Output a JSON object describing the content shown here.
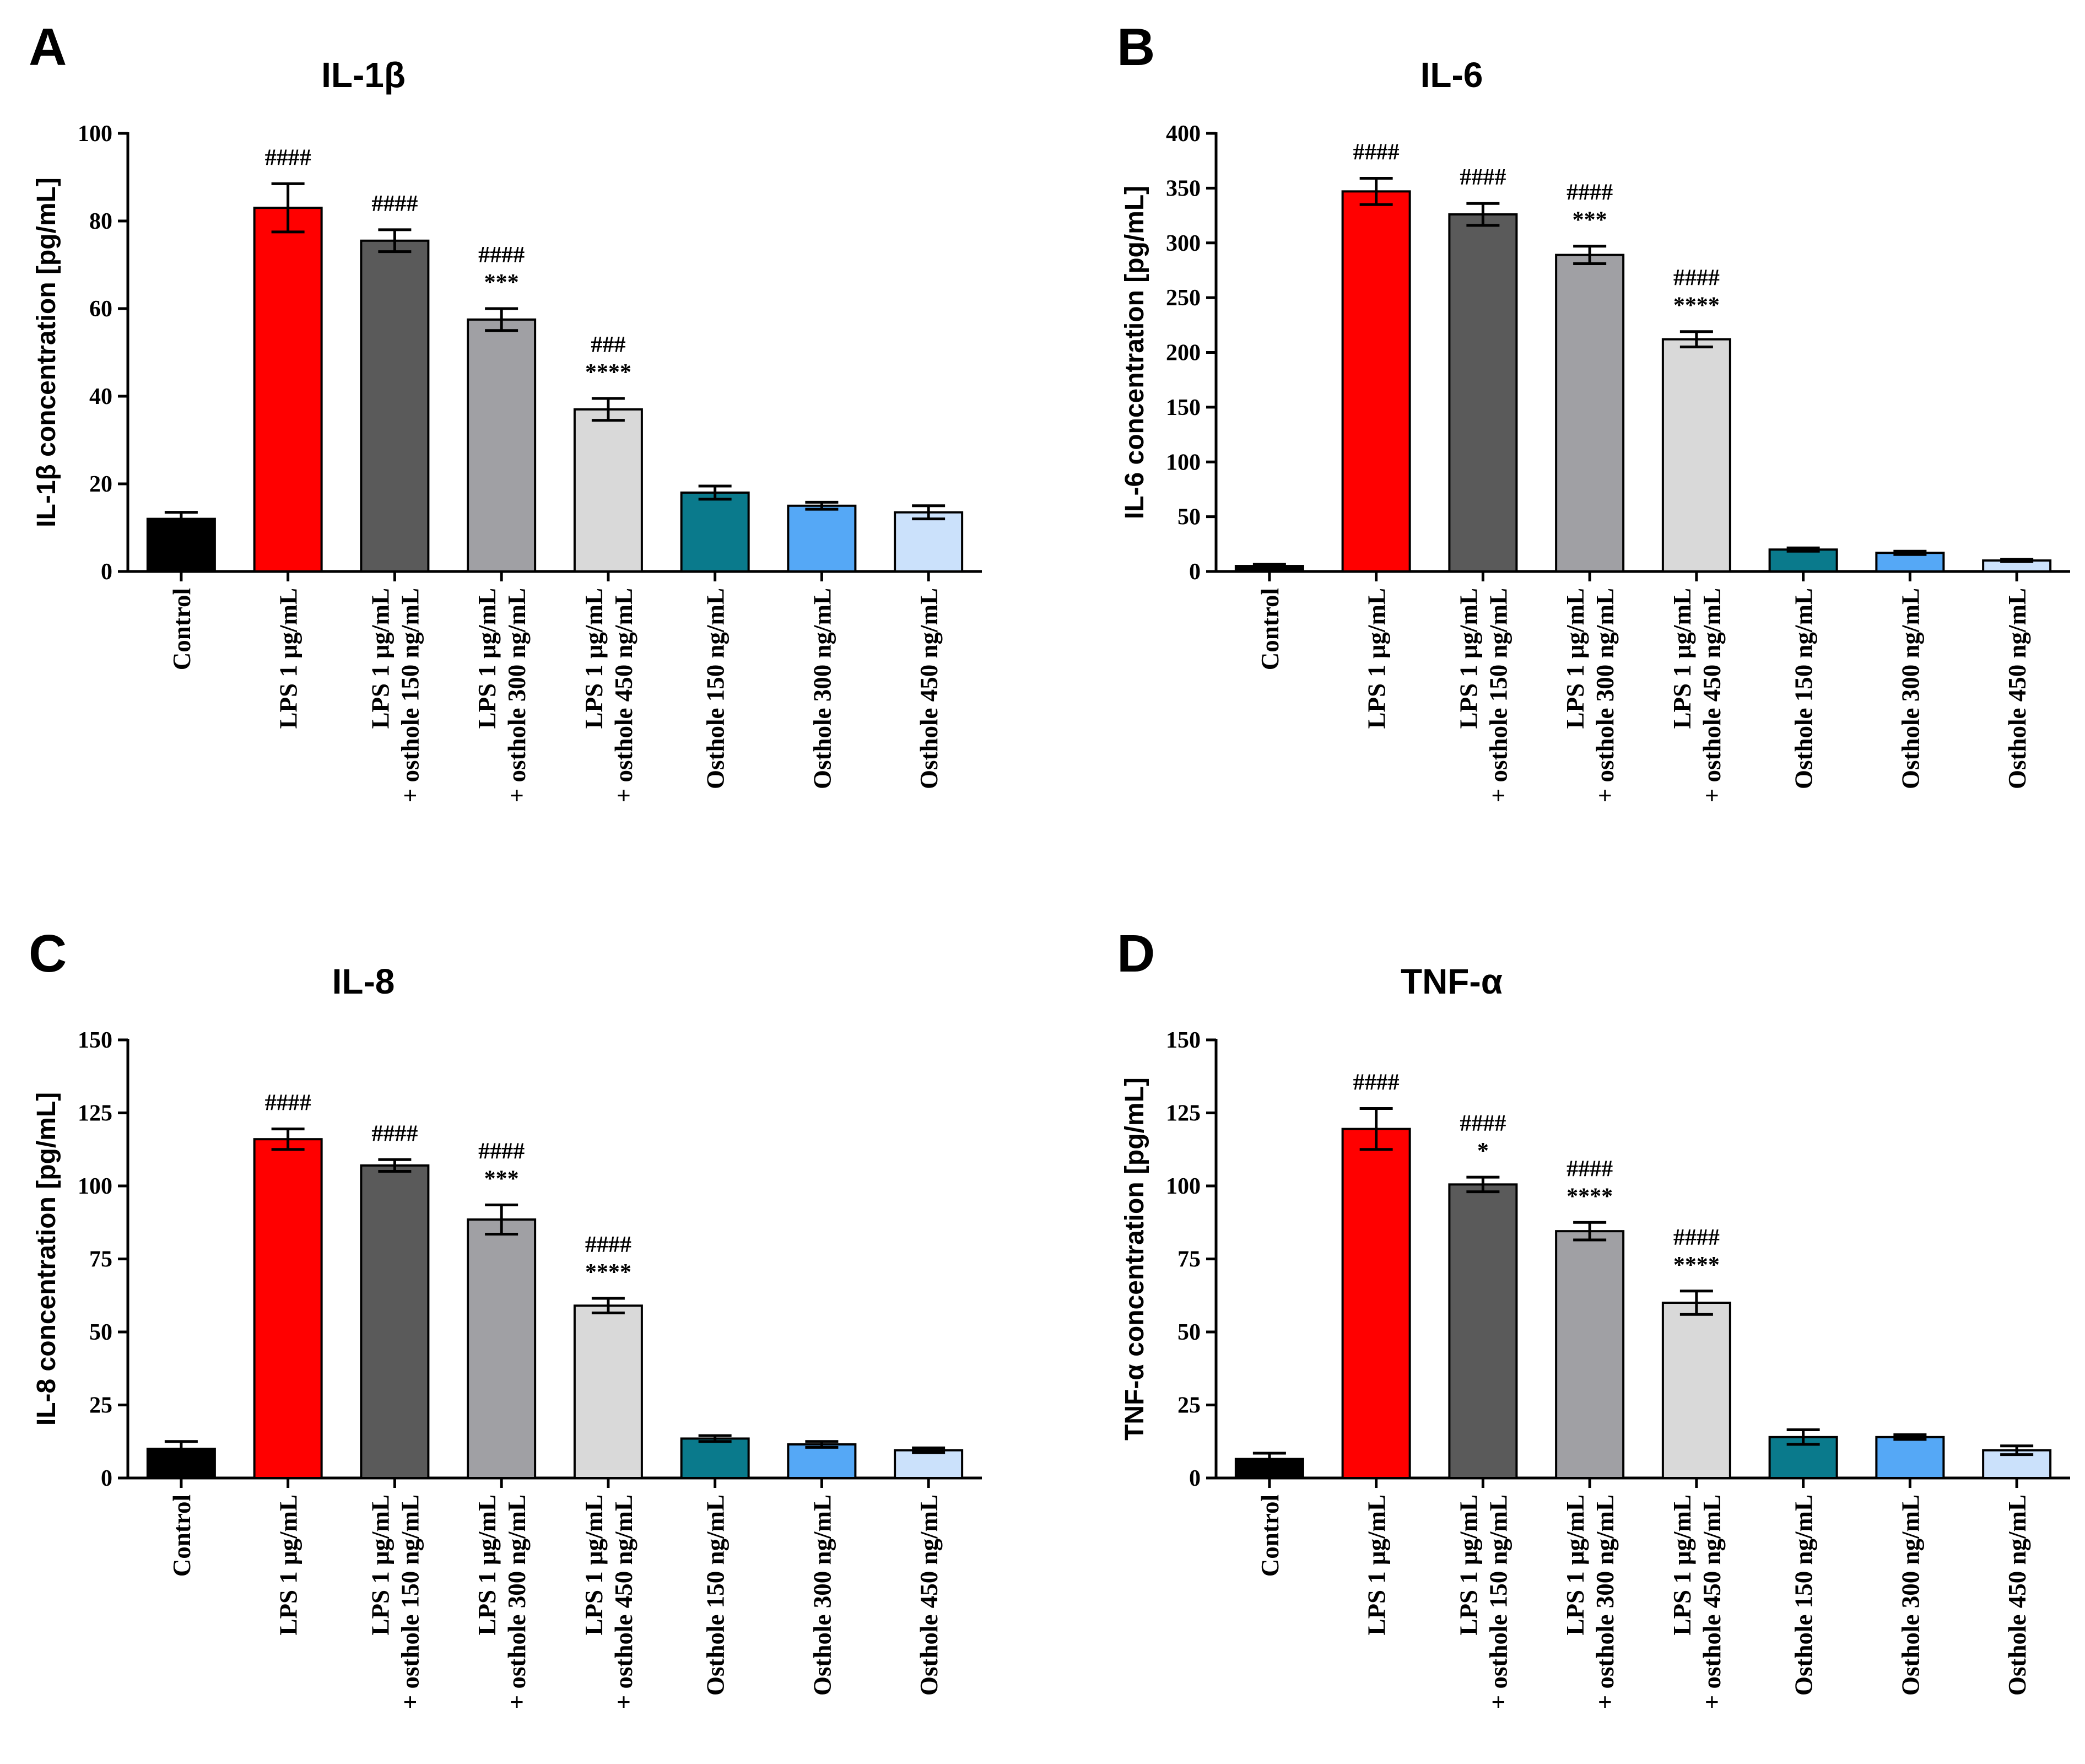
{
  "chart_data": [
    {
      "panel": "A",
      "type": "bar",
      "title": "IL-1β",
      "ylabel": "IL-1β concentration [pg/mL]",
      "xlabel": "",
      "ylim": [
        0,
        100
      ],
      "yticks": [
        0,
        20,
        40,
        60,
        80,
        100
      ],
      "categories": [
        {
          "lines": [
            "Control"
          ]
        },
        {
          "lines": [
            "LPS 1 μg/mL"
          ]
        },
        {
          "lines": [
            "LPS 1 μg/mL",
            "+ osthole 150 ng/mL"
          ]
        },
        {
          "lines": [
            "LPS 1 μg/mL",
            "+ osthole 300 ng/mL"
          ]
        },
        {
          "lines": [
            "LPS 1 μg/mL",
            "+ osthole 450 ng/mL"
          ]
        },
        {
          "lines": [
            "Osthole 150 ng/mL"
          ]
        },
        {
          "lines": [
            "Osthole 300 ng/mL"
          ]
        },
        {
          "lines": [
            "Osthole 450 ng/mL"
          ]
        }
      ],
      "values": [
        12,
        83,
        75.5,
        57.5,
        37,
        18,
        15,
        13.5
      ],
      "errors": [
        1.5,
        5.5,
        2.5,
        2.5,
        2.5,
        1.5,
        0.8,
        1.5
      ],
      "annotations": [
        [],
        [
          "####"
        ],
        [
          "####"
        ],
        [
          "####",
          "***"
        ],
        [
          "###",
          "****"
        ],
        [],
        [],
        []
      ]
    },
    {
      "panel": "B",
      "type": "bar",
      "title": "IL-6",
      "ylabel": "IL-6 concentration [pg/mL]",
      "xlabel": "",
      "ylim": [
        0,
        400
      ],
      "yticks": [
        0,
        50,
        100,
        150,
        200,
        250,
        300,
        350,
        400
      ],
      "categories": [
        {
          "lines": [
            "Control"
          ]
        },
        {
          "lines": [
            "LPS 1 μg/mL"
          ]
        },
        {
          "lines": [
            "LPS 1 μg/mL",
            "+ osthole 150 ng/mL"
          ]
        },
        {
          "lines": [
            "LPS 1 μg/mL",
            "+ osthole 300 ng/mL"
          ]
        },
        {
          "lines": [
            "LPS 1 μg/mL",
            "+ osthole 450 ng/mL"
          ]
        },
        {
          "lines": [
            "Osthole 150 ng/mL"
          ]
        },
        {
          "lines": [
            "Osthole 300 ng/mL"
          ]
        },
        {
          "lines": [
            "Osthole 450 ng/mL"
          ]
        }
      ],
      "values": [
        5,
        347,
        326,
        289,
        212,
        20,
        17,
        10
      ],
      "errors": [
        1.5,
        12,
        10,
        8,
        7,
        1.5,
        1.5,
        1
      ],
      "annotations": [
        [],
        [
          "####"
        ],
        [
          "####"
        ],
        [
          "####",
          "***"
        ],
        [
          "####",
          "****"
        ],
        [],
        [],
        []
      ]
    },
    {
      "panel": "C",
      "type": "bar",
      "title": "IL-8",
      "ylabel": "IL-8 concentration [pg/mL]",
      "xlabel": "",
      "ylim": [
        0,
        150
      ],
      "yticks": [
        0,
        25,
        50,
        75,
        100,
        125,
        150
      ],
      "categories": [
        {
          "lines": [
            "Control"
          ]
        },
        {
          "lines": [
            "LPS 1 μg/mL"
          ]
        },
        {
          "lines": [
            "LPS 1 μg/mL",
            "+ osthole 150 ng/mL"
          ]
        },
        {
          "lines": [
            "LPS 1 μg/mL",
            "+ osthole 300 ng/mL"
          ]
        },
        {
          "lines": [
            "LPS 1 μg/mL",
            "+ osthole 450 ng/mL"
          ]
        },
        {
          "lines": [
            "Osthole 150 ng/mL"
          ]
        },
        {
          "lines": [
            "Osthole 300 ng/mL"
          ]
        },
        {
          "lines": [
            "Osthole 450 ng/mL"
          ]
        }
      ],
      "values": [
        10,
        116,
        107,
        88.5,
        59,
        13.5,
        11.5,
        9.5
      ],
      "errors": [
        2.5,
        3.5,
        2,
        5,
        2.5,
        1,
        1,
        0.8
      ],
      "annotations": [
        [],
        [
          "####"
        ],
        [
          "####"
        ],
        [
          "####",
          "***"
        ],
        [
          "####",
          "****"
        ],
        [],
        [],
        []
      ]
    },
    {
      "panel": "D",
      "type": "bar",
      "title": "TNF-α",
      "ylabel": "TNF-α concentration [pg/mL]",
      "xlabel": "",
      "ylim": [
        0,
        150
      ],
      "yticks": [
        0,
        25,
        50,
        75,
        100,
        125,
        150
      ],
      "categories": [
        {
          "lines": [
            "Control"
          ]
        },
        {
          "lines": [
            "LPS 1 μg/mL"
          ]
        },
        {
          "lines": [
            "LPS 1 μg/mL",
            "+ osthole 150 ng/mL"
          ]
        },
        {
          "lines": [
            "LPS 1 μg/mL",
            "+ osthole 300 ng/mL"
          ]
        },
        {
          "lines": [
            "LPS 1 μg/mL",
            "+ osthole 450 ng/mL"
          ]
        },
        {
          "lines": [
            "Osthole 150 ng/mL"
          ]
        },
        {
          "lines": [
            "Osthole 300 ng/mL"
          ]
        },
        {
          "lines": [
            "Osthole 450 ng/mL"
          ]
        }
      ],
      "values": [
        6.5,
        119.5,
        100.5,
        84.5,
        60,
        14,
        14,
        9.5
      ],
      "errors": [
        2,
        7,
        2.5,
        3,
        4,
        2.5,
        0.8,
        1.5
      ],
      "annotations": [
        [],
        [
          "####"
        ],
        [
          "####",
          "*"
        ],
        [
          "####",
          "****"
        ],
        [
          "####",
          "****"
        ],
        [],
        [],
        []
      ]
    }
  ],
  "bar_colors": [
    "#000000",
    "#ff0000",
    "#5a5a5a",
    "#a0a0a4",
    "#d9d9d9",
    "#0a7a8c",
    "#55a8f6",
    "#cbe1fb"
  ]
}
